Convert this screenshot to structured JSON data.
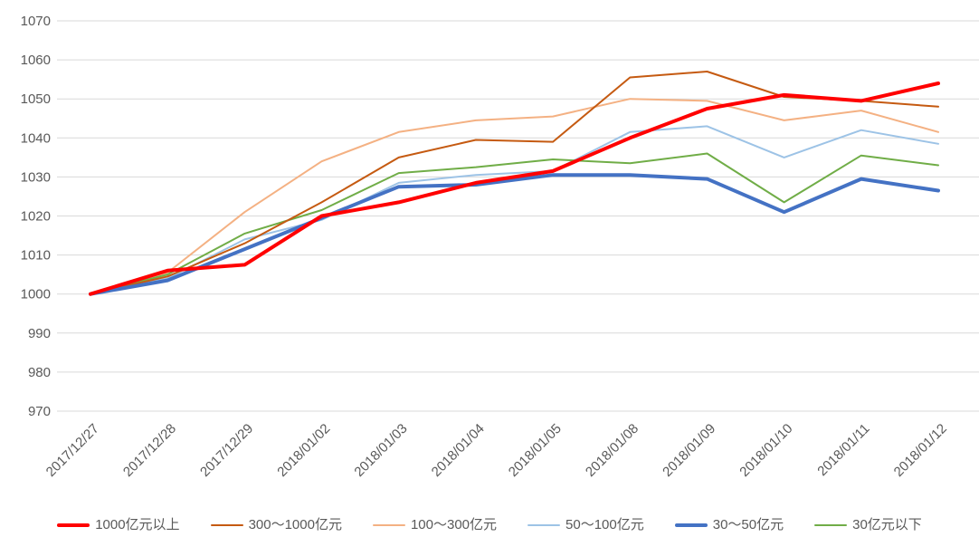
{
  "chart_data": {
    "type": "line",
    "title": "",
    "xlabel": "",
    "ylabel": "",
    "x": [
      "2017/12/27",
      "2017/12/28",
      "2017/12/29",
      "2018/01/02",
      "2018/01/03",
      "2018/01/04",
      "2018/01/05",
      "2018/01/08",
      "2018/01/09",
      "2018/01/10",
      "2018/01/11",
      "2018/01/12"
    ],
    "series": [
      {
        "name": "1000亿元以上",
        "color": "#FF0000",
        "stroke_width": 4,
        "values": [
          1000,
          1006,
          1007.5,
          1020,
          1023.5,
          1028.5,
          1031.5,
          1040,
          1047.5,
          1051,
          1049.5,
          1054
        ]
      },
      {
        "name": "300～1000亿元",
        "color": "#C55A11",
        "stroke_width": 2,
        "values": [
          1000,
          1004.5,
          1013,
          1023.5,
          1035,
          1039.5,
          1039,
          1055.5,
          1057,
          1050.5,
          1049.5,
          1048
        ]
      },
      {
        "name": "100～300亿元",
        "color": "#F4B183",
        "stroke_width": 2,
        "values": [
          1000,
          1005.5,
          1021,
          1034,
          1041.5,
          1044.5,
          1045.5,
          1050,
          1049.5,
          1044.5,
          1047,
          1041.5
        ]
      },
      {
        "name": "50～100亿元",
        "color": "#9DC3E6",
        "stroke_width": 2,
        "values": [
          1000,
          1004,
          1014,
          1019,
          1028.5,
          1030.5,
          1031.5,
          1041.5,
          1043,
          1035,
          1042,
          1038.5
        ]
      },
      {
        "name": "30～50亿元",
        "color": "#4472C4",
        "stroke_width": 4,
        "values": [
          1000,
          1003.5,
          1011.5,
          1019.5,
          1027.5,
          1028,
          1030.5,
          1030.5,
          1029.5,
          1021,
          1029.5,
          1026.5
        ]
      },
      {
        "name": "30亿元以下",
        "color": "#70AD47",
        "stroke_width": 2,
        "values": [
          1000,
          1005,
          1015.5,
          1021.5,
          1031,
          1032.5,
          1034.5,
          1033.5,
          1036,
          1023.5,
          1035.5,
          1033
        ]
      }
    ],
    "ylim": [
      970,
      1070
    ],
    "ytick_step": 10,
    "ytick_labels": [
      "970",
      "980",
      "990",
      "1000",
      "1010",
      "1020",
      "1030",
      "1040",
      "1050",
      "1060",
      "1070"
    ],
    "grid": "horizontal",
    "legend_position": "bottom",
    "axis_label_color": "#595959",
    "grid_color": "#D9D9D9",
    "background_color": "#FFFFFF"
  }
}
